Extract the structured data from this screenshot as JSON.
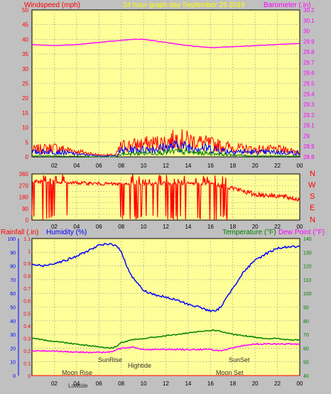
{
  "colors": {
    "background": "#c0c0c0",
    "plot_fill": "#ffff99",
    "grid": "#a0a0a0",
    "wind": "#ff0000",
    "wind_avg": "#0000ff",
    "wind_low": "#008000",
    "barometer": "#ff00ff",
    "direction": "#ff0000",
    "humidity": "#0000ff",
    "temperature": "#008000",
    "dewpoint": "#ff00ff",
    "rain": "#ff0000",
    "title": "#ffff00",
    "annotation": "#303030"
  },
  "header": {
    "wind_label": "Windspeed (mph)",
    "title": "24 hour graph day   September 25 2019",
    "baro_label": "Barometer (.in)"
  },
  "compass": [
    "N",
    "W",
    "S",
    "E",
    "N"
  ],
  "lower": {
    "rain_label": "Rainfall (.in)",
    "humidity_label": "Humidity (%)",
    "temp_label": "Temperature (°F)",
    "dew_label": "Dew Point (°F)"
  },
  "annotations": {
    "moonrise": "Moon Rise",
    "sunrise": "SunRise",
    "hightide": "Hightide",
    "sunset": "SunSet",
    "moonset": "Moon Set",
    "lowtide": "Lowtide"
  },
  "chart_data": [
    {
      "type": "line",
      "name": "wind_barometer",
      "x_ticks": [
        "02",
        "04",
        "06",
        "08",
        "10",
        "12",
        "14",
        "16",
        "18",
        "20",
        "22",
        "00"
      ],
      "y_left": {
        "ticks": [
          0,
          5,
          10,
          15,
          20,
          25,
          30,
          35,
          40,
          45,
          50
        ],
        "ylim": [
          0,
          50
        ]
      },
      "y_right": {
        "ticks": [
          "28.8",
          "28.9",
          "29",
          "29.1",
          "29.2",
          "29.3",
          "29.4",
          "29.5",
          "29.6",
          "29.7",
          "29.8",
          "29.9",
          "30",
          "30.1",
          "30.2"
        ],
        "ylim": [
          28.8,
          30.2
        ]
      },
      "barometer": {
        "x": [
          0,
          2,
          4,
          6,
          8,
          9,
          10,
          12,
          14,
          16,
          18,
          20,
          22,
          24
        ],
        "y": [
          29.87,
          29.86,
          29.87,
          29.89,
          29.91,
          29.92,
          29.92,
          29.89,
          29.86,
          29.84,
          29.85,
          29.86,
          29.87,
          29.88
        ]
      },
      "wind": {
        "profile_x": [
          0,
          2,
          4,
          6,
          7.5,
          8,
          10,
          12,
          13,
          14,
          15,
          16,
          17,
          18,
          20,
          22,
          24
        ],
        "gust_max": [
          4,
          5,
          3,
          1,
          1,
          6,
          7,
          8,
          10,
          9,
          8,
          7,
          6,
          5,
          4,
          4,
          3
        ],
        "avg_max": [
          2.5,
          3,
          1.5,
          0.5,
          0.5,
          3.5,
          4,
          5,
          6,
          5.5,
          5,
          4.5,
          3.5,
          3,
          2.5,
          2.5,
          2
        ],
        "low_max": [
          0.5,
          0.5,
          0.3,
          0,
          0,
          1.5,
          2,
          2.5,
          3,
          2.5,
          2,
          2,
          1.5,
          1,
          0.5,
          0.5,
          0.5
        ]
      }
    },
    {
      "type": "line",
      "name": "wind_direction",
      "x_ticks": [
        "02",
        "04",
        "06",
        "08",
        "10",
        "12",
        "14",
        "16",
        "18",
        "20",
        "22",
        "00"
      ],
      "y_ticks": [
        0,
        45,
        90,
        135,
        180,
        225,
        270,
        315,
        360
      ],
      "ylim": [
        0,
        360
      ],
      "baseline": [
        {
          "x": 0,
          "y": 300
        },
        {
          "x": 8,
          "y": 280
        },
        {
          "x": 12,
          "y": 285
        },
        {
          "x": 16,
          "y": 285
        },
        {
          "x": 18,
          "y": 250
        },
        {
          "x": 20,
          "y": 200
        },
        {
          "x": 22,
          "y": 190
        },
        {
          "x": 24,
          "y": 160
        }
      ]
    },
    {
      "type": "line",
      "name": "humidity_temperature",
      "x_ticks": [
        "02",
        "04",
        "06",
        "08",
        "10",
        "12",
        "14",
        "16",
        "18",
        "20",
        "22",
        "00"
      ],
      "y_humidity": {
        "ticks": [
          0,
          10,
          20,
          30,
          40,
          50,
          60,
          70,
          80,
          90,
          100
        ],
        "ylim": [
          0,
          100
        ]
      },
      "y_rain": {
        "ticks": [
          "0",
          "0.1",
          "0.2",
          "0.3",
          "0.4",
          "0.5",
          "0.6",
          "0.7",
          "0.8",
          "0.9",
          "1",
          "1.1"
        ],
        "ylim": [
          0,
          1.1
        ]
      },
      "y_temp": {
        "ticks": [
          40,
          50,
          60,
          70,
          80,
          90,
          100,
          110,
          120,
          130,
          140
        ],
        "ylim": [
          40,
          140
        ]
      },
      "humidity": {
        "x": [
          0,
          1,
          2,
          3,
          4,
          5,
          6,
          7,
          7.6,
          8,
          8.5,
          9,
          10,
          11,
          12,
          13,
          14,
          15,
          16,
          16.5,
          17,
          18,
          19,
          20,
          21,
          22,
          23,
          24
        ],
        "y": [
          81,
          80,
          82,
          84,
          87,
          91,
          95,
          96,
          95,
          90,
          80,
          72,
          62,
          59,
          57,
          55,
          52,
          50,
          47,
          47,
          51,
          64,
          76,
          84,
          89,
          93,
          94,
          94
        ]
      },
      "temperature": {
        "x": [
          0,
          1,
          2,
          4,
          6,
          7,
          7.5,
          8,
          9,
          10,
          11,
          12,
          13,
          14,
          15,
          16,
          16.5,
          17,
          18,
          19,
          20,
          21,
          22,
          23,
          24
        ],
        "y": [
          67,
          66,
          65,
          63,
          61,
          60,
          61,
          64,
          66,
          67,
          68,
          69,
          70,
          71,
          72,
          73,
          73,
          72,
          70,
          69,
          68,
          67,
          67,
          66,
          66
        ],
        "axis": "temperature"
      },
      "dewpoint": {
        "x": [
          0,
          2,
          4,
          6,
          7,
          8,
          9,
          10,
          12,
          14,
          16,
          17,
          18,
          19,
          20,
          22,
          24
        ],
        "y": [
          58,
          58,
          57,
          57,
          57,
          60,
          61,
          59,
          59,
          59,
          59,
          58,
          60,
          62,
          63,
          63,
          63
        ],
        "axis": "temperature"
      },
      "rainfall": {
        "x": [
          0,
          24
        ],
        "y": [
          0,
          0
        ]
      }
    }
  ]
}
